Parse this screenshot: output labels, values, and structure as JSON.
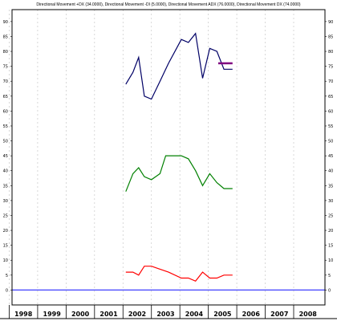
{
  "chart_data": {
    "type": "line",
    "title": "Directional Movement +DX (34.0000), Directional Movement -DI (5.0000), Directional Movement ADX (76.0000), Directional Movement DX (74.0000)",
    "xlabel": "",
    "ylabel": "",
    "xlim": [
      1997.6,
      2008.6
    ],
    "ylim": [
      -5,
      94
    ],
    "yticks": [
      0,
      5,
      10,
      15,
      20,
      25,
      30,
      35,
      40,
      45,
      50,
      55,
      60,
      65,
      70,
      75,
      80,
      85,
      90
    ],
    "xticks": [
      1998,
      1999,
      2000,
      2001,
      2002,
      2003,
      2004,
      2005,
      2006,
      2007,
      2008
    ],
    "xtick_labels": [
      "1998",
      "1999",
      "2000",
      "2001",
      "2002",
      "2003",
      "2004",
      "2005",
      "2006",
      "2007",
      "2008"
    ],
    "grid": true,
    "series": [
      {
        "color": "#000066",
        "x": [
          2001.6,
          2001.85,
          2002.05,
          2002.25,
          2002.5,
          2002.8,
          2003.1,
          2003.55,
          2003.8,
          2004.05,
          2004.3,
          2004.55,
          2004.8,
          2005.05,
          2005.35
        ],
        "y": [
          69,
          73,
          78,
          65,
          64,
          70,
          76,
          84,
          83,
          86,
          71,
          81,
          80,
          74,
          74
        ]
      },
      {
        "color": "#008000",
        "x": [
          2001.6,
          2001.85,
          2002.05,
          2002.25,
          2002.5,
          2002.8,
          2003.0,
          2003.3,
          2003.55,
          2003.8,
          2004.05,
          2004.3,
          2004.55,
          2004.8,
          2005.05,
          2005.35
        ],
        "y": [
          33,
          39,
          41,
          38,
          37,
          39,
          45,
          45,
          45,
          44,
          40,
          35,
          39,
          36,
          34,
          34
        ]
      },
      {
        "color": "#ff0000",
        "x": [
          2001.6,
          2001.85,
          2002.05,
          2002.25,
          2002.5,
          2002.8,
          2003.1,
          2003.55,
          2003.8,
          2004.05,
          2004.3,
          2004.55,
          2004.8,
          2005.05,
          2005.35
        ],
        "y": [
          6,
          6,
          5,
          8,
          8,
          7,
          6,
          4,
          4,
          3,
          6,
          4,
          4,
          5,
          5
        ]
      },
      {
        "color": "#800080",
        "x": [
          2004.85,
          2005.35
        ],
        "y": [
          76,
          76
        ]
      },
      {
        "color": "#4040ff",
        "x": [
          1997.6,
          2008.6
        ],
        "y": [
          0,
          0
        ]
      }
    ]
  }
}
